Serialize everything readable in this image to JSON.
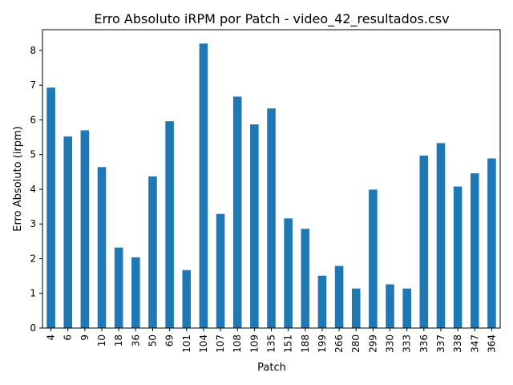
{
  "chart_data": {
    "type": "bar",
    "title": "Erro Absoluto iRPM por Patch - video_42_resultados.csv",
    "xlabel": "Patch",
    "ylabel": "Erro Absoluto (irpm)",
    "ylim": [
      0,
      8.6
    ],
    "yticks": [
      0,
      1,
      2,
      3,
      4,
      5,
      6,
      7,
      8
    ],
    "grid": false,
    "legend": "none",
    "bar_color": "#1f77b4",
    "categories": [
      "4",
      "6",
      "9",
      "10",
      "18",
      "36",
      "50",
      "69",
      "101",
      "104",
      "107",
      "108",
      "109",
      "135",
      "151",
      "188",
      "199",
      "266",
      "280",
      "299",
      "330",
      "333",
      "336",
      "337",
      "338",
      "347",
      "364"
    ],
    "values": [
      6.93,
      5.52,
      5.7,
      4.64,
      2.32,
      2.04,
      4.37,
      5.96,
      1.67,
      8.2,
      3.29,
      6.67,
      5.87,
      6.33,
      3.16,
      2.86,
      1.51,
      1.79,
      1.14,
      3.99,
      1.26,
      1.14,
      4.97,
      5.33,
      4.08,
      4.46,
      4.89
    ]
  }
}
